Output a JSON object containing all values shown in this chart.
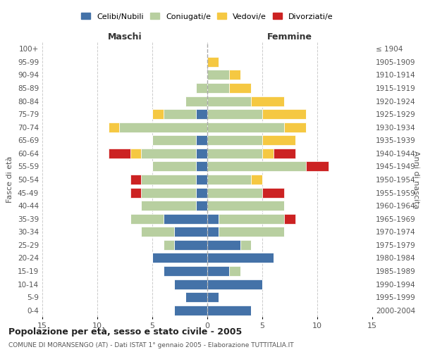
{
  "age_groups": [
    "100+",
    "95-99",
    "90-94",
    "85-89",
    "80-84",
    "75-79",
    "70-74",
    "65-69",
    "60-64",
    "55-59",
    "50-54",
    "45-49",
    "40-44",
    "35-39",
    "30-34",
    "25-29",
    "20-24",
    "15-19",
    "10-14",
    "5-9",
    "0-4"
  ],
  "birth_years": [
    "≤ 1904",
    "1905-1909",
    "1910-1914",
    "1915-1919",
    "1920-1924",
    "1925-1929",
    "1930-1934",
    "1935-1939",
    "1940-1944",
    "1945-1949",
    "1950-1954",
    "1955-1959",
    "1960-1964",
    "1965-1969",
    "1970-1974",
    "1975-1979",
    "1980-1984",
    "1985-1989",
    "1990-1994",
    "1995-1999",
    "2000-2004"
  ],
  "colors": {
    "celibi": "#4472a8",
    "coniugati": "#b8cfa0",
    "vedovi": "#f5c842",
    "divorziati": "#cc2222"
  },
  "maschi": {
    "celibi": [
      0,
      0,
      0,
      0,
      0,
      1,
      0,
      1,
      1,
      1,
      1,
      1,
      1,
      4,
      3,
      3,
      5,
      4,
      3,
      2,
      3
    ],
    "coniugati": [
      0,
      0,
      0,
      1,
      2,
      3,
      8,
      4,
      5,
      4,
      5,
      5,
      5,
      3,
      3,
      1,
      0,
      0,
      0,
      0,
      0
    ],
    "vedovi": [
      0,
      0,
      0,
      0,
      0,
      1,
      1,
      0,
      1,
      0,
      0,
      0,
      0,
      0,
      0,
      0,
      0,
      0,
      0,
      0,
      0
    ],
    "divorziati": [
      0,
      0,
      0,
      0,
      0,
      0,
      0,
      0,
      2,
      0,
      1,
      1,
      0,
      0,
      0,
      0,
      0,
      0,
      0,
      0,
      0
    ]
  },
  "femmine": {
    "celibi": [
      0,
      0,
      0,
      0,
      0,
      0,
      0,
      0,
      0,
      0,
      0,
      0,
      0,
      1,
      1,
      3,
      6,
      2,
      5,
      1,
      4
    ],
    "coniugati": [
      0,
      0,
      2,
      2,
      4,
      5,
      7,
      5,
      5,
      9,
      4,
      5,
      7,
      6,
      6,
      1,
      0,
      1,
      0,
      0,
      0
    ],
    "vedovi": [
      0,
      1,
      1,
      2,
      3,
      4,
      2,
      3,
      1,
      0,
      1,
      0,
      0,
      0,
      0,
      0,
      0,
      0,
      0,
      0,
      0
    ],
    "divorziati": [
      0,
      0,
      0,
      0,
      0,
      0,
      0,
      0,
      2,
      2,
      0,
      2,
      0,
      1,
      0,
      0,
      0,
      0,
      0,
      0,
      0
    ]
  },
  "title": "Popolazione per età, sesso e stato civile - 2005",
  "subtitle": "COMUNE DI MORANSENGO (AT) - Dati ISTAT 1° gennaio 2005 - Elaborazione TUTTITALIA.IT",
  "xlim": 15,
  "xlabel_left": "Maschi",
  "xlabel_right": "Femmine",
  "ylabel_left": "Fasce di età",
  "ylabel_right": "Anni di nascita",
  "legend_labels": [
    "Celibi/Nubili",
    "Coniugati/e",
    "Vedovi/e",
    "Divorziati/e"
  ],
  "bg_color": "#ffffff",
  "grid_color": "#cccccc"
}
